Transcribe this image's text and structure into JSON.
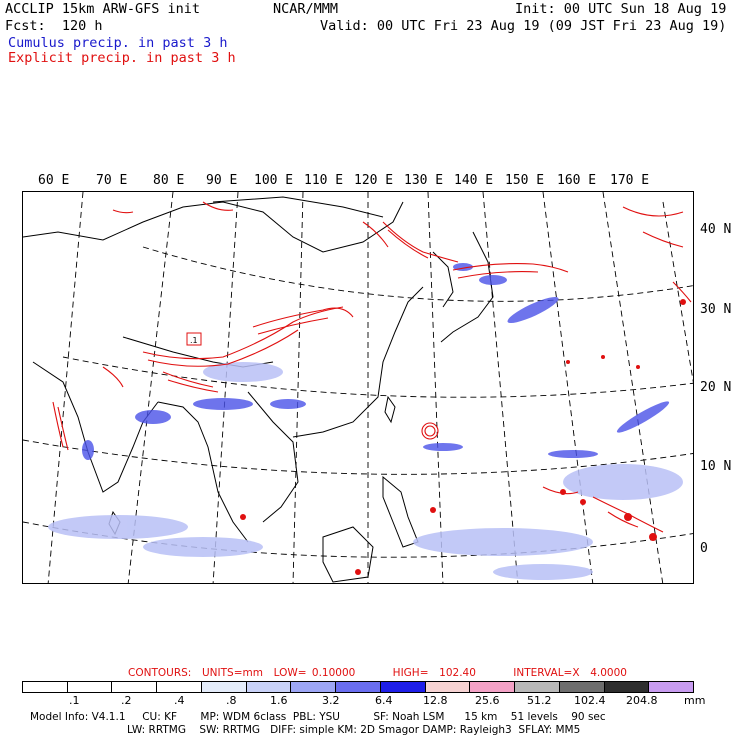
{
  "header": {
    "model": "ACCLIP 15km ARW-GFS init",
    "org": "NCAR/MMM",
    "init": "Init: 00 UTC Sun 18 Aug 19",
    "fcst": "Fcst:  120 h",
    "valid": "Valid: 00 UTC Fri 23 Aug 19 (09 JST Fri 23 Aug 19)",
    "cumulus_label": "Cumulus precip. in past 3 h",
    "explicit_label": "Explicit precip. in past 3 h",
    "cumulus_color": "#1a1acc",
    "explicit_color": "#e01010"
  },
  "map": {
    "lon_labels": [
      "60 E",
      "70 E",
      "80 E",
      "90 E",
      "100 E",
      "110 E",
      "120 E",
      "130 E",
      "140 E",
      "150 E",
      "160 E",
      "170 E"
    ],
    "lat_labels": [
      "40 N",
      "30 N",
      "20 N",
      "10 N",
      "0"
    ],
    "annotation": ".1"
  },
  "legend": {
    "contour_line": "CONTOURS:  UNITS=mm  LOW= 0.10000       HIGH=  102.40       INTERVAL=X  4.0000",
    "colors": [
      "#ffffff",
      "#ffffff",
      "#ffffff",
      "#ffffff",
      "#e4ecfa",
      "#c9d2f8",
      "#9da6f5",
      "#6a6ef0",
      "#1e1ee8",
      "#f6d3d3",
      "#f3a2c6",
      "#b8b8b8",
      "#6e6e6e",
      "#2e2e2e",
      "#c89cf0"
    ],
    "tick_labels": [
      ".1",
      ".2",
      ".4",
      ".8",
      "1.6",
      "3.2",
      "6.4",
      "12.8",
      "25.6",
      "51.2",
      "102.4",
      "204.8"
    ],
    "units": "mm"
  },
  "footer": {
    "line1": "Model Info: V4.1.1     CU: KF       MP: WDM 6class  PBL: YSU          SF: Noah LSM      15 km    51 levels    90 sec",
    "line2": "LW: RRTMG    SW: RRTMG   DIFF: simple KM: 2D Smagor DAMP: Rayleigh3  SFLAY: MM5"
  }
}
